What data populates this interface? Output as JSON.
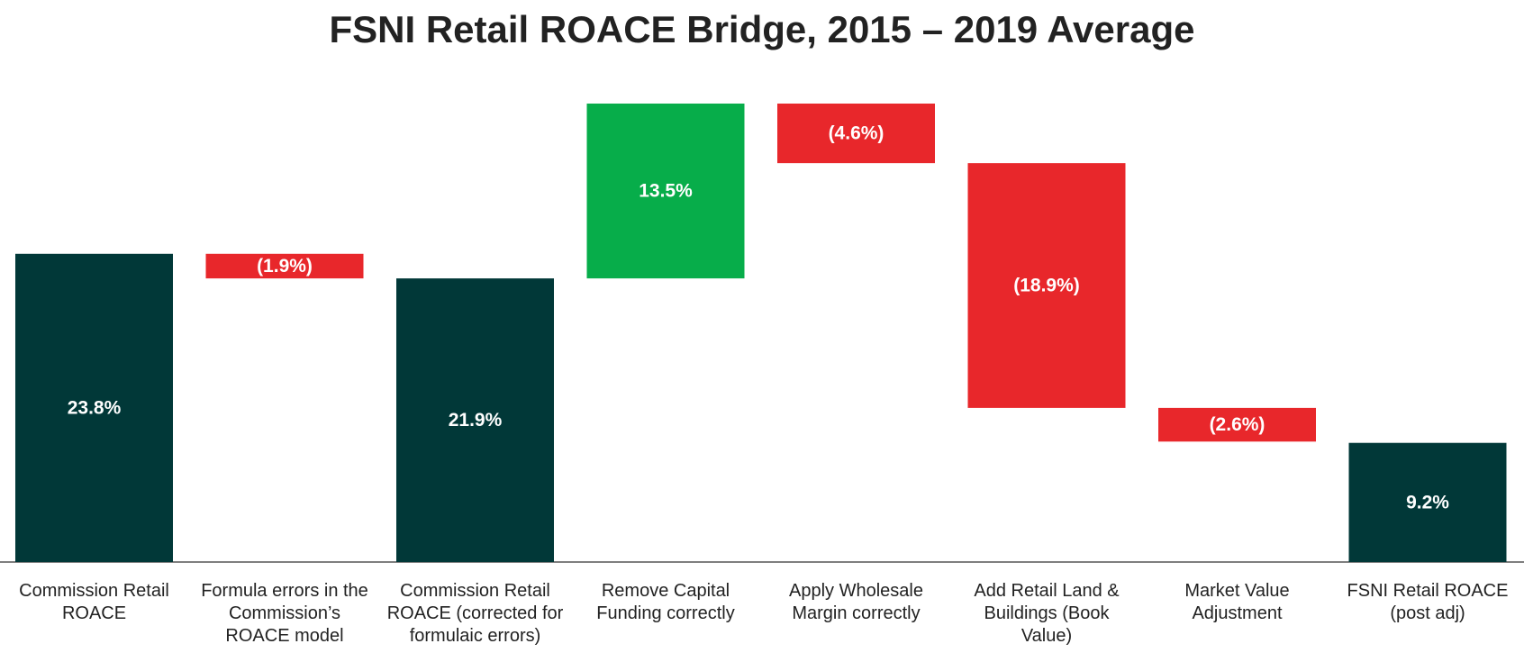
{
  "chart_data": {
    "type": "waterfall",
    "title": "FSNI Retail ROACE Bridge, 2015 – 2019 Average",
    "categories": [
      "Commission Retail ROACE",
      "Formula errors in the Commission’s ROACE model",
      "Commission Retail ROACE (corrected for formulaic errors)",
      "Remove Capital Funding correctly",
      "Apply Wholesale Margin correctly",
      "Add Retail Land & Buildings (Book Value)",
      "Market Value Adjustment",
      "FSNI Retail ROACE (post adj)"
    ],
    "values": [
      23.8,
      -1.9,
      21.9,
      13.5,
      -4.6,
      -18.9,
      -2.6,
      9.2
    ],
    "value_labels": [
      "23.8%",
      "(1.9%)",
      "21.9%",
      "13.5%",
      "(4.6%)",
      "(18.9%)",
      "(2.6%)",
      "9.2%"
    ],
    "totals": [
      true,
      false,
      true,
      false,
      false,
      false,
      false,
      true
    ],
    "colors": [
      "#013838",
      "#e8272b",
      "#013838",
      "#07ad4a",
      "#e8272b",
      "#e8272b",
      "#e8272b",
      "#013838"
    ]
  }
}
